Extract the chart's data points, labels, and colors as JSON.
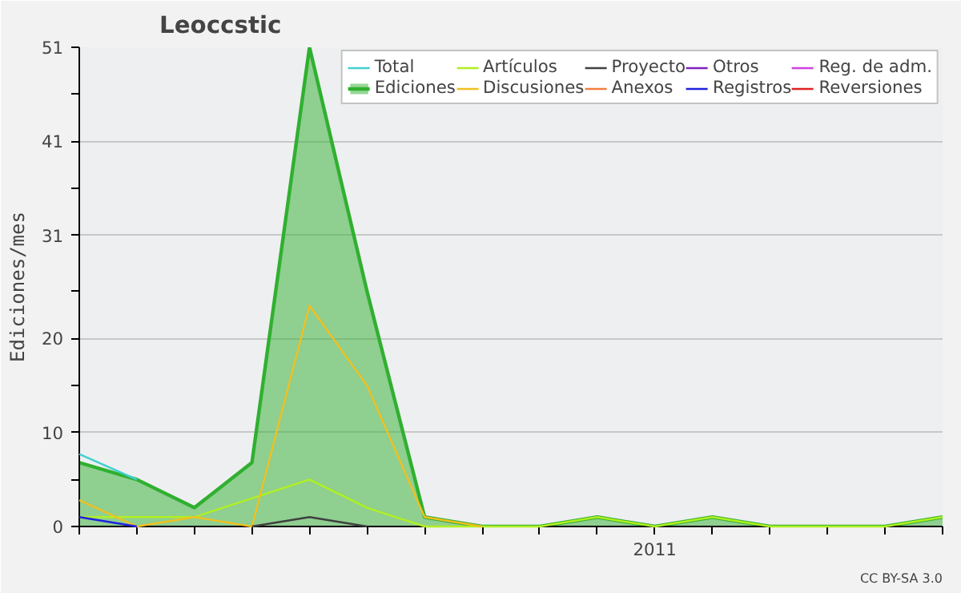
{
  "chart_data": {
    "type": "line",
    "title": "Leoccstic",
    "ylabel": "Ediciones/mes",
    "categories": [
      null,
      null,
      null,
      null,
      null,
      null,
      null,
      null,
      null,
      null,
      "2011",
      null,
      null,
      null,
      null,
      null
    ],
    "ylim": [
      0,
      51
    ],
    "yticks": [
      0,
      {
        "value": 5,
        "label": null
      },
      10,
      {
        "value": 15,
        "label": null
      },
      20,
      {
        "value": 25,
        "label": null
      },
      31,
      {
        "value": 36,
        "label": null
      },
      41,
      {
        "value": 46,
        "label": null
      },
      51
    ],
    "grid": "y",
    "legend": "top right",
    "series": [
      {
        "name": "Total",
        "color": "#40d0d0",
        "values": [
          7.7,
          5,
          null,
          null,
          null,
          null,
          null,
          null,
          null,
          null,
          null,
          null,
          null,
          null,
          null,
          null
        ]
      },
      {
        "name": "Ediciones",
        "type": "area",
        "color": "#30b030",
        "values": [
          6.8,
          5,
          2,
          6.8,
          51,
          25,
          1,
          0,
          0,
          1,
          0,
          1,
          0,
          0,
          0,
          1
        ]
      },
      {
        "name": "Artículos",
        "color": "#b0f020",
        "values": [
          1,
          1,
          1,
          3,
          5,
          2,
          0,
          0,
          0,
          1,
          0,
          1,
          0,
          0,
          0,
          1
        ]
      },
      {
        "name": "Discusiones",
        "color": "#f0c020",
        "values": [
          2.8,
          0,
          1,
          0,
          23.5,
          15,
          1,
          0,
          null,
          null,
          null,
          null,
          null,
          null,
          null,
          null
        ]
      },
      {
        "name": "Proyecto",
        "color": "#404040",
        "values": [
          null,
          null,
          null,
          0,
          1,
          0,
          null,
          null,
          null,
          null,
          null,
          null,
          null,
          null,
          null,
          null
        ]
      },
      {
        "name": "Anexos",
        "color": "#f08040",
        "values": [
          null,
          null,
          null,
          null,
          null,
          null,
          null,
          null,
          null,
          null,
          null,
          null,
          null,
          null,
          null,
          null
        ]
      },
      {
        "name": "Otros",
        "color": "#8020c0",
        "values": [
          null,
          null,
          null,
          null,
          null,
          null,
          null,
          null,
          null,
          null,
          null,
          null,
          null,
          null,
          null,
          null
        ]
      },
      {
        "name": "Registros",
        "color": "#2020e0",
        "values": [
          1,
          0,
          null,
          null,
          null,
          null,
          null,
          null,
          null,
          null,
          null,
          null,
          null,
          null,
          null,
          null
        ]
      },
      {
        "name": "Reg. de adm.",
        "color": "#d040e0",
        "values": [
          null,
          null,
          null,
          null,
          null,
          null,
          null,
          null,
          null,
          null,
          null,
          null,
          null,
          null,
          null,
          null
        ]
      },
      {
        "name": "Reversiones",
        "color": "#e02020",
        "values": [
          null,
          null,
          null,
          null,
          null,
          null,
          null,
          null,
          null,
          null,
          null,
          null,
          null,
          null,
          null,
          null
        ]
      }
    ],
    "annotations": [
      "CC BY-SA 3.0"
    ]
  }
}
